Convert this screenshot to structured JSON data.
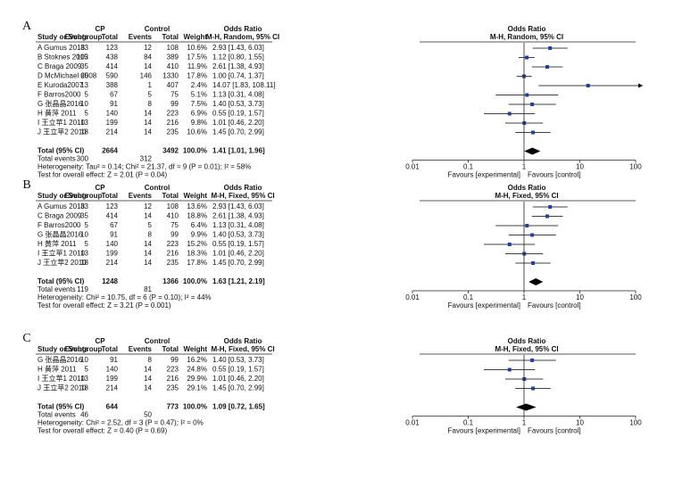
{
  "chart_data": [
    {
      "type": "forest",
      "panel": "A",
      "log_scale": true,
      "xlim": [
        0.01,
        100
      ],
      "xticks": [
        0.01,
        0.1,
        1,
        10,
        100
      ],
      "color": "#1f3fa8",
      "columns": {
        "cp": "CP",
        "control": "Control",
        "or_left": "Odds Ratio",
        "or_right": "Odds Ratio",
        "study": "Study or Subgroup",
        "events1": "Events",
        "total1": "Total",
        "events2": "Events",
        "total2": "Total",
        "weight": "Weight",
        "method_left": "M-H, Random, 95% CI",
        "method_right": "M-H, Random, 95% CI"
      },
      "rows": [
        {
          "study": "A Gumus 2018",
          "cp_events": 33,
          "cp_total": 123,
          "ctrl_events": 12,
          "ctrl_total": 108,
          "weight": "10.6%",
          "or": 2.93,
          "ci": [
            1.43,
            6.03
          ],
          "or_label": "2.93 [1.43, 6.03]"
        },
        {
          "study": "B Stoknes 2015",
          "cp_events": 103,
          "cp_total": 438,
          "ctrl_events": 84,
          "ctrl_total": 389,
          "weight": "17.5%",
          "or": 1.12,
          "ci": [
            0.8,
            1.55
          ],
          "or_label": "1.12 [0.80, 1.55]"
        },
        {
          "study": "C Braga 2009",
          "cp_events": 35,
          "cp_total": 414,
          "ctrl_events": 14,
          "ctrl_total": 410,
          "weight": "11.9%",
          "or": 2.61,
          "ci": [
            1.38,
            4.93
          ],
          "or_label": "2.61 [1.38, 4.93]"
        },
        {
          "study": "D McMichael 2008",
          "cp_events": 65,
          "cp_total": 590,
          "ctrl_events": 146,
          "ctrl_total": 1330,
          "weight": "17.8%",
          "or": 1.0,
          "ci": [
            0.74,
            1.37
          ],
          "or_label": "1.00 [0.74, 1.37]"
        },
        {
          "study": "E Kuroda2007",
          "cp_events": 13,
          "cp_total": 388,
          "ctrl_events": 1,
          "ctrl_total": 407,
          "weight": "2.4%",
          "or": 14.07,
          "ci": [
            1.83,
            108.11
          ],
          "or_label": "14.07 [1.83, 108.11]"
        },
        {
          "study": "F Barros2000",
          "cp_events": 5,
          "cp_total": 67,
          "ctrl_events": 5,
          "ctrl_total": 75,
          "weight": "5.1%",
          "or": 1.13,
          "ci": [
            0.31,
            4.08
          ],
          "or_label": "1.13 [0.31, 4.08]"
        },
        {
          "study": "G 张晶晶2016",
          "cp_events": 10,
          "cp_total": 91,
          "ctrl_events": 8,
          "ctrl_total": 99,
          "weight": "7.5%",
          "or": 1.4,
          "ci": [
            0.53,
            3.73
          ],
          "or_label": "1.40 [0.53, 3.73]"
        },
        {
          "study": "H 黄萍 2011",
          "cp_events": 5,
          "cp_total": 140,
          "ctrl_events": 14,
          "ctrl_total": 223,
          "weight": "6.9%",
          "or": 0.55,
          "ci": [
            0.19,
            1.57
          ],
          "or_label": "0.55 [0.19, 1.57]"
        },
        {
          "study": "I 王立苹1 2010",
          "cp_events": 13,
          "cp_total": 199,
          "ctrl_events": 14,
          "ctrl_total": 216,
          "weight": "9.8%",
          "or": 1.01,
          "ci": [
            0.46,
            2.2
          ],
          "or_label": "1.01 [0.46, 2.20]"
        },
        {
          "study": "J 王立苹2 2010",
          "cp_events": 18,
          "cp_total": 214,
          "ctrl_events": 14,
          "ctrl_total": 235,
          "weight": "10.6%",
          "or": 1.45,
          "ci": [
            0.7,
            2.99
          ],
          "or_label": "1.45 [0.70, 2.99]"
        }
      ],
      "total": {
        "label": "Total (95% CI)",
        "cp_total": 2664,
        "ctrl_total": 3492,
        "weight": "100.0%",
        "or": 1.41,
        "ci": [
          1.01,
          1.96
        ],
        "or_label": "1.41 [1.01, 1.96]"
      },
      "total_events": {
        "label": "Total events",
        "cp": 300,
        "ctrl": 312
      },
      "heterogeneity": "Heterogeneity: Tau² = 0.14; Chi² = 21.37, df = 9 (P = 0.01); I² = 58%",
      "overall_effect": "Test for overall effect: Z = 2.01 (P = 0.04)",
      "favours_left": "Favours [experimental]",
      "favours_right": "Favours [control]"
    },
    {
      "type": "forest",
      "panel": "B",
      "log_scale": true,
      "xlim": [
        0.01,
        100
      ],
      "xticks": [
        0.01,
        0.1,
        1,
        10,
        100
      ],
      "color": "#1f3fa8",
      "columns": {
        "cp": "CP",
        "control": "Control",
        "or_left": "Odds Ratio",
        "or_right": "Odds Ratio",
        "study": "Study or Subgroup",
        "events1": "Events",
        "total1": "Total",
        "events2": "Events",
        "total2": "Total",
        "weight": "Weight",
        "method_left": "M-H, Fixed, 95% CI",
        "method_right": "M-H, Fixed, 95% CI"
      },
      "rows": [
        {
          "study": "A Gumus 2018",
          "cp_events": 33,
          "cp_total": 123,
          "ctrl_events": 12,
          "ctrl_total": 108,
          "weight": "13.6%",
          "or": 2.93,
          "ci": [
            1.43,
            6.03
          ],
          "or_label": "2.93 [1.43, 6.03]"
        },
        {
          "study": "C Braga 2009",
          "cp_events": 35,
          "cp_total": 414,
          "ctrl_events": 14,
          "ctrl_total": 410,
          "weight": "18.8%",
          "or": 2.61,
          "ci": [
            1.38,
            4.93
          ],
          "or_label": "2.61 [1.38, 4.93]"
        },
        {
          "study": "F Barros2000",
          "cp_events": 5,
          "cp_total": 67,
          "ctrl_events": 5,
          "ctrl_total": 75,
          "weight": "6.4%",
          "or": 1.13,
          "ci": [
            0.31,
            4.08
          ],
          "or_label": "1.13 [0.31, 4.08]"
        },
        {
          "study": "G 张晶晶2016",
          "cp_events": 10,
          "cp_total": 91,
          "ctrl_events": 8,
          "ctrl_total": 99,
          "weight": "9.9%",
          "or": 1.4,
          "ci": [
            0.53,
            3.73
          ],
          "or_label": "1.40 [0.53, 3.73]"
        },
        {
          "study": "H 黄萍 2011",
          "cp_events": 5,
          "cp_total": 140,
          "ctrl_events": 14,
          "ctrl_total": 223,
          "weight": "15.2%",
          "or": 0.55,
          "ci": [
            0.19,
            1.57
          ],
          "or_label": "0.55 [0.19, 1.57]"
        },
        {
          "study": "I 王立苹1 2010",
          "cp_events": 13,
          "cp_total": 199,
          "ctrl_events": 14,
          "ctrl_total": 216,
          "weight": "18.3%",
          "or": 1.01,
          "ci": [
            0.46,
            2.2
          ],
          "or_label": "1.01 [0.46, 2.20]"
        },
        {
          "study": "J 王立苹2 2010",
          "cp_events": 18,
          "cp_total": 214,
          "ctrl_events": 14,
          "ctrl_total": 235,
          "weight": "17.8%",
          "or": 1.45,
          "ci": [
            0.7,
            2.99
          ],
          "or_label": "1.45 [0.70, 2.99]"
        }
      ],
      "total": {
        "label": "Total (95% CI)",
        "cp_total": 1248,
        "ctrl_total": 1366,
        "weight": "100.0%",
        "or": 1.63,
        "ci": [
          1.21,
          2.19
        ],
        "or_label": "1.63 [1.21, 2.19]"
      },
      "total_events": {
        "label": "Total events",
        "cp": 119,
        "ctrl": 81
      },
      "heterogeneity": "Heterogeneity: Chi² = 10.75, df = 6 (P = 0.10); I² = 44%",
      "overall_effect": "Test for overall effect: Z = 3.21 (P = 0.001)",
      "favours_left": "Favours [experimental]",
      "favours_right": "Favours [control]"
    },
    {
      "type": "forest",
      "panel": "C",
      "log_scale": true,
      "xlim": [
        0.01,
        100
      ],
      "xticks": [
        0.01,
        0.1,
        1,
        10,
        100
      ],
      "color": "#1f3fa8",
      "columns": {
        "cp": "CP",
        "control": "Control",
        "or_left": "Odds Ratio",
        "or_right": "Odds Ratio",
        "study": "Study or Subgroup",
        "events1": "Events",
        "total1": "Total",
        "events2": "Events",
        "total2": "Total",
        "weight": "Weight",
        "method_left": "M-H, Fixed, 95% CI",
        "method_right": "M-H, Fixed, 95% CI"
      },
      "rows": [
        {
          "study": "G 张晶晶2016",
          "cp_events": 10,
          "cp_total": 91,
          "ctrl_events": 8,
          "ctrl_total": 99,
          "weight": "16.2%",
          "or": 1.4,
          "ci": [
            0.53,
            3.73
          ],
          "or_label": "1.40 [0.53, 3.73]"
        },
        {
          "study": "H 黄萍 2011",
          "cp_events": 5,
          "cp_total": 140,
          "ctrl_events": 14,
          "ctrl_total": 223,
          "weight": "24.8%",
          "or": 0.55,
          "ci": [
            0.19,
            1.57
          ],
          "or_label": "0.55 [0.19, 1.57]"
        },
        {
          "study": "I 王立苹1 2010",
          "cp_events": 13,
          "cp_total": 199,
          "ctrl_events": 14,
          "ctrl_total": 216,
          "weight": "29.9%",
          "or": 1.01,
          "ci": [
            0.46,
            2.2
          ],
          "or_label": "1.01 [0.46, 2.20]"
        },
        {
          "study": "J 王立苹2 2010",
          "cp_events": 18,
          "cp_total": 214,
          "ctrl_events": 14,
          "ctrl_total": 235,
          "weight": "29.1%",
          "or": 1.45,
          "ci": [
            0.7,
            2.99
          ],
          "or_label": "1.45 [0.70, 2.99]"
        }
      ],
      "total": {
        "label": "Total (95% CI)",
        "cp_total": 644,
        "ctrl_total": 773,
        "weight": "100.0%",
        "or": 1.09,
        "ci": [
          0.72,
          1.65
        ],
        "or_label": "1.09 [0.72, 1.65]"
      },
      "total_events": {
        "label": "Total events",
        "cp": 46,
        "ctrl": 50
      },
      "heterogeneity": "Heterogeneity: Chi² = 2.52, df = 3 (P = 0.47); I² = 0%",
      "overall_effect": "Test for overall effect: Z = 0.40 (P = 0.69)",
      "favours_left": "Favours [experimental]",
      "favours_right": "Favours [control]"
    }
  ]
}
